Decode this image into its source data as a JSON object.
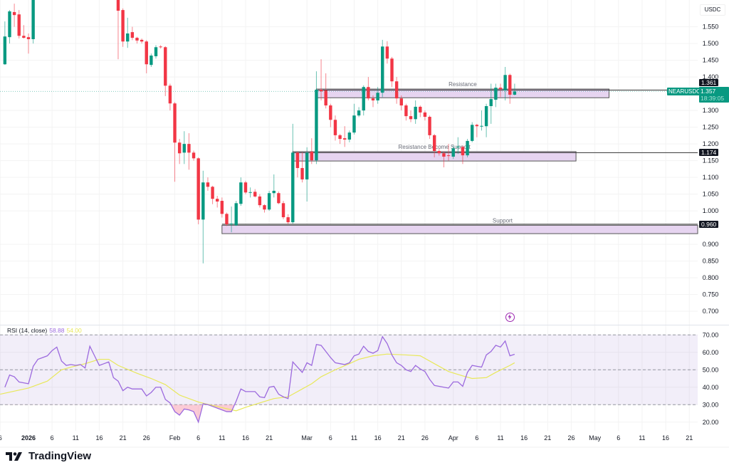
{
  "chart_data": {
    "type": "candlestick",
    "symbol": "NEARUSDC",
    "currency": "USDC",
    "colors": {
      "up": "#089981",
      "down": "#f23645",
      "rsi": "#9c6ade",
      "rsi_ma": "#e8e85a",
      "zone": "#e6d4f0"
    },
    "price_axis": {
      "range": [
        0.662,
        1.63
      ],
      "ticks": [
        "1.550",
        "1.500",
        "1.450",
        "1.400",
        "1.300",
        "1.250",
        "1.200",
        "1.150",
        "1.100",
        "1.050",
        "1.000",
        "0.900",
        "0.850",
        "0.800",
        "0.750",
        "0.700"
      ]
    },
    "time_axis": [
      {
        "date": "2025-12-26",
        "label": "6"
      },
      {
        "date": "2026-01-01",
        "label": "2026",
        "bold": true
      },
      {
        "date": "2026-01-06",
        "label": "6"
      },
      {
        "date": "2026-01-11",
        "label": "11"
      },
      {
        "date": "2026-01-16",
        "label": "16"
      },
      {
        "date": "2026-01-21",
        "label": "21"
      },
      {
        "date": "2026-01-26",
        "label": "26"
      },
      {
        "date": "2026-02-01",
        "label": "Feb"
      },
      {
        "date": "2026-02-06",
        "label": "6"
      },
      {
        "date": "2026-02-11",
        "label": "11"
      },
      {
        "date": "2026-02-16",
        "label": "16"
      },
      {
        "date": "2026-02-21",
        "label": "21"
      },
      {
        "date": "2026-03-01",
        "label": "Mar"
      },
      {
        "date": "2026-03-06",
        "label": "6"
      },
      {
        "date": "2026-03-11",
        "label": "11"
      },
      {
        "date": "2026-03-16",
        "label": "16"
      },
      {
        "date": "2026-03-21",
        "label": "21"
      },
      {
        "date": "2026-03-26",
        "label": "26"
      },
      {
        "date": "2026-04-01",
        "label": "Apr"
      },
      {
        "date": "2026-04-06",
        "label": "6"
      },
      {
        "date": "2026-04-11",
        "label": "11"
      },
      {
        "date": "2026-04-16",
        "label": "16"
      },
      {
        "date": "2026-04-21",
        "label": "21"
      },
      {
        "date": "2026-04-26",
        "label": "26"
      },
      {
        "date": "2026-05-01",
        "label": "May"
      },
      {
        "date": "2026-05-06",
        "label": "6"
      },
      {
        "date": "2026-05-11",
        "label": "11"
      },
      {
        "date": "2026-05-16",
        "label": "16"
      },
      {
        "date": "2026-05-21",
        "label": "21"
      }
    ],
    "candles_columns": [
      "date",
      "open",
      "high",
      "low",
      "close",
      "rsi"
    ],
    "candles": [
      [
        "2025-12-27",
        1.438,
        1.566,
        1.436,
        1.521,
        40
      ],
      [
        "2025-12-28",
        1.519,
        1.6,
        1.5,
        1.596,
        47
      ],
      [
        "2025-12-29",
        1.594,
        1.619,
        1.55,
        1.585,
        46
      ],
      [
        "2025-12-30",
        1.587,
        1.6,
        1.515,
        1.523,
        43
      ],
      [
        "2025-12-31",
        1.523,
        1.555,
        1.515,
        1.517,
        42.5
      ],
      [
        "2026-01-01",
        1.519,
        1.53,
        1.47,
        1.513,
        42
      ],
      [
        "2026-01-02",
        1.513,
        1.65,
        1.5,
        1.64,
        52
      ],
      [
        "2026-01-03",
        null,
        null,
        null,
        null,
        56
      ],
      [
        "2026-01-04",
        null,
        null,
        null,
        null,
        57
      ],
      [
        "2026-01-05",
        null,
        null,
        null,
        null,
        58
      ],
      [
        "2026-01-06",
        null,
        null,
        null,
        null,
        61
      ],
      [
        "2026-01-07",
        null,
        null,
        null,
        null,
        63
      ],
      [
        "2026-01-08",
        null,
        null,
        null,
        null,
        55
      ],
      [
        "2026-01-09",
        null,
        null,
        null,
        null,
        52.5
      ],
      [
        "2026-01-10",
        null,
        null,
        null,
        null,
        53
      ],
      [
        "2026-01-11",
        null,
        null,
        null,
        null,
        52.5
      ],
      [
        "2026-01-12",
        null,
        null,
        null,
        null,
        53
      ],
      [
        "2026-01-13",
        null,
        null,
        null,
        null,
        51
      ],
      [
        "2026-01-14",
        null,
        null,
        null,
        null,
        63.5
      ],
      [
        "2026-01-15",
        null,
        null,
        null,
        null,
        58
      ],
      [
        "2026-01-16",
        null,
        null,
        null,
        null,
        52.5
      ],
      [
        "2026-01-17",
        null,
        null,
        null,
        null,
        53.5
      ],
      [
        "2026-01-18",
        null,
        null,
        null,
        null,
        54.5
      ],
      [
        "2026-01-19",
        null,
        null,
        null,
        null,
        45.5
      ],
      [
        "2026-01-20",
        1.64,
        1.65,
        1.453,
        1.598,
        43.5
      ],
      [
        "2026-01-21",
        1.6,
        1.605,
        1.49,
        1.506,
        38
      ],
      [
        "2026-01-22",
        1.506,
        1.577,
        1.487,
        1.53,
        40
      ],
      [
        "2026-01-23",
        1.534,
        1.55,
        1.51,
        1.517,
        39
      ],
      [
        "2026-01-24",
        1.517,
        1.52,
        1.5,
        1.509,
        39
      ],
      [
        "2026-01-25",
        1.511,
        1.515,
        1.5,
        1.506,
        39
      ],
      [
        "2026-01-26",
        1.506,
        1.51,
        1.411,
        1.438,
        35
      ],
      [
        "2026-01-27",
        1.436,
        1.47,
        1.43,
        1.464,
        37
      ],
      [
        "2026-01-28",
        1.462,
        1.495,
        1.455,
        1.489,
        40
      ],
      [
        "2026-01-29",
        1.491,
        1.495,
        1.485,
        1.49,
        40
      ],
      [
        "2026-01-30",
        1.489,
        1.492,
        1.343,
        1.374,
        33
      ],
      [
        "2026-01-31",
        1.374,
        1.38,
        1.3,
        1.321,
        31
      ],
      [
        "2026-02-01",
        1.321,
        1.325,
        1.087,
        1.204,
        26
      ],
      [
        "2026-02-02",
        1.204,
        1.215,
        1.14,
        1.172,
        24
      ],
      [
        "2026-02-03",
        1.174,
        1.238,
        1.14,
        1.2,
        27.5
      ],
      [
        "2026-02-04",
        1.2,
        1.232,
        1.123,
        1.174,
        27
      ],
      [
        "2026-02-05",
        1.174,
        1.18,
        1.15,
        1.157,
        26
      ],
      [
        "2026-02-06",
        1.157,
        1.16,
        0.96,
        0.974,
        20
      ],
      [
        "2026-02-07",
        0.974,
        1.12,
        0.843,
        1.085,
        30.5
      ],
      [
        "2026-02-08",
        1.085,
        1.1,
        1.06,
        1.072,
        30
      ],
      [
        "2026-02-09",
        1.072,
        1.075,
        1.02,
        1.036,
        29
      ],
      [
        "2026-02-10",
        1.036,
        1.045,
        1.01,
        1.028,
        28
      ],
      [
        "2026-02-11",
        1.03,
        1.04,
        0.98,
        0.991,
        27
      ],
      [
        "2026-02-12",
        0.991,
        0.995,
        0.955,
        0.96,
        26
      ],
      [
        "2026-02-13",
        0.96,
        1.013,
        0.936,
        0.962,
        26
      ],
      [
        "2026-02-14",
        0.957,
        1.03,
        0.955,
        1.023,
        32
      ],
      [
        "2026-02-15",
        1.021,
        1.1,
        1.015,
        1.085,
        39
      ],
      [
        "2026-02-16",
        1.085,
        1.09,
        1.05,
        1.055,
        37.5
      ],
      [
        "2026-02-17",
        1.055,
        1.07,
        1.04,
        1.056,
        37.5
      ],
      [
        "2026-02-18",
        1.057,
        1.065,
        1.04,
        1.043,
        37.5
      ],
      [
        "2026-02-19",
        1.043,
        1.05,
        1.01,
        1.017,
        34.5
      ],
      [
        "2026-02-20",
        1.017,
        1.02,
        0.995,
        1.004,
        34
      ],
      [
        "2026-02-21",
        1.004,
        1.06,
        1.0,
        1.053,
        40
      ],
      [
        "2026-02-22",
        1.053,
        1.109,
        1.04,
        1.06,
        40.5
      ],
      [
        "2026-02-23",
        1.053,
        1.058,
        1.02,
        1.023,
        36
      ],
      [
        "2026-02-24",
        1.023,
        1.03,
        0.975,
        0.981,
        34.5
      ],
      [
        "2026-02-25",
        0.981,
        0.99,
        0.96,
        0.966,
        33.5
      ],
      [
        "2026-02-26",
        0.966,
        1.26,
        0.962,
        1.174,
        54.5
      ],
      [
        "2026-02-27",
        1.174,
        1.178,
        1.1,
        1.128,
        51.5
      ],
      [
        "2026-02-28",
        1.128,
        1.175,
        1.085,
        1.094,
        48.5
      ],
      [
        "2026-03-01",
        1.094,
        1.19,
        1.028,
        1.174,
        54
      ],
      [
        "2026-03-02",
        1.177,
        1.217,
        1.14,
        1.151,
        52.5
      ],
      [
        "2026-03-03",
        1.151,
        1.417,
        1.14,
        1.362,
        64.5
      ],
      [
        "2026-03-04",
        1.362,
        1.453,
        1.33,
        1.357,
        64
      ],
      [
        "2026-03-05",
        1.36,
        1.411,
        1.306,
        1.315,
        60.5
      ],
      [
        "2026-03-06",
        1.315,
        1.32,
        1.25,
        1.272,
        57
      ],
      [
        "2026-03-07",
        1.272,
        1.285,
        1.21,
        1.226,
        54
      ],
      [
        "2026-03-08",
        1.226,
        1.23,
        1.2,
        1.215,
        53.5
      ],
      [
        "2026-03-09",
        1.217,
        1.253,
        1.191,
        1.213,
        53
      ],
      [
        "2026-03-10",
        1.213,
        1.24,
        1.205,
        1.234,
        54
      ],
      [
        "2026-03-11",
        1.234,
        1.32,
        1.228,
        1.285,
        58
      ],
      [
        "2026-03-12",
        1.285,
        1.31,
        1.28,
        1.3,
        59
      ],
      [
        "2026-03-13",
        1.3,
        1.375,
        1.285,
        1.37,
        63.5
      ],
      [
        "2026-03-14",
        1.37,
        1.4,
        1.33,
        1.336,
        60.5
      ],
      [
        "2026-03-15",
        1.336,
        1.345,
        1.31,
        1.33,
        59.5
      ],
      [
        "2026-03-16",
        1.33,
        1.37,
        1.32,
        1.353,
        61
      ],
      [
        "2026-03-17",
        1.353,
        1.511,
        1.34,
        1.491,
        69
      ],
      [
        "2026-03-18",
        1.491,
        1.507,
        1.44,
        1.455,
        65
      ],
      [
        "2026-03-19",
        1.455,
        1.46,
        1.37,
        1.387,
        58.5
      ],
      [
        "2026-03-20",
        1.387,
        1.4,
        1.32,
        1.336,
        54
      ],
      [
        "2026-03-21",
        1.336,
        1.345,
        1.3,
        1.315,
        52.5
      ],
      [
        "2026-03-22",
        1.315,
        1.32,
        1.27,
        1.283,
        50
      ],
      [
        "2026-03-23",
        1.283,
        1.3,
        1.265,
        1.274,
        49
      ],
      [
        "2026-03-24",
        1.274,
        1.33,
        1.26,
        1.311,
        52.5
      ],
      [
        "2026-03-25",
        1.311,
        1.315,
        1.28,
        1.294,
        50.5
      ],
      [
        "2026-03-26",
        1.294,
        1.3,
        1.27,
        1.281,
        49
      ],
      [
        "2026-03-27",
        1.281,
        1.285,
        1.215,
        1.226,
        44.5
      ],
      [
        "2026-03-28",
        1.226,
        1.23,
        1.16,
        1.179,
        41
      ],
      [
        "2026-03-29",
        1.179,
        1.185,
        1.165,
        1.172,
        40.5
      ],
      [
        "2026-03-30",
        1.172,
        1.178,
        1.13,
        1.162,
        40
      ],
      [
        "2026-03-31",
        1.166,
        1.2,
        1.15,
        1.164,
        39.5
      ],
      [
        "2026-04-01",
        1.162,
        1.195,
        1.155,
        1.187,
        43
      ],
      [
        "2026-04-02",
        1.191,
        1.22,
        1.17,
        1.192,
        43
      ],
      [
        "2026-04-03",
        1.191,
        1.195,
        1.14,
        1.166,
        40.5
      ],
      [
        "2026-04-04",
        1.166,
        1.215,
        1.16,
        1.209,
        48.5
      ],
      [
        "2026-04-05",
        1.209,
        1.265,
        1.205,
        1.257,
        52.5
      ],
      [
        "2026-04-06",
        1.257,
        1.26,
        1.22,
        1.253,
        52
      ],
      [
        "2026-04-07",
        1.253,
        1.3,
        1.24,
        1.254,
        51.5
      ],
      [
        "2026-04-08",
        1.253,
        1.32,
        1.22,
        1.313,
        58.5
      ],
      [
        "2026-04-09",
        1.313,
        1.38,
        1.26,
        1.334,
        60.5
      ],
      [
        "2026-04-10",
        1.332,
        1.38,
        1.31,
        1.368,
        64
      ],
      [
        "2026-04-11",
        1.368,
        1.38,
        1.34,
        1.364,
        63
      ],
      [
        "2026-04-12",
        1.36,
        1.43,
        1.33,
        1.406,
        66.5
      ],
      [
        "2026-04-13",
        1.406,
        1.41,
        1.32,
        1.347,
        58
      ],
      [
        "2026-04-14",
        1.347,
        1.38,
        1.345,
        1.357,
        58.88
      ]
    ],
    "zones": [
      {
        "label": "Resistance",
        "line": 1.361,
        "line_label": "1.361",
        "top": 1.364,
        "bottom": 1.338,
        "from": "2026-03-03",
        "to": "2026-05-04"
      },
      {
        "label": "Resistance Become Support",
        "line": 1.174,
        "line_label": "1.174",
        "top": 1.177,
        "bottom": 1.149,
        "from": "2026-02-26",
        "to": "2026-04-27"
      },
      {
        "label": "Support",
        "line": 0.96,
        "line_label": "0.960",
        "top": 0.957,
        "bottom": 0.932,
        "from": "2026-02-11",
        "to": "2026-06-01"
      }
    ],
    "last_price": {
      "value": 1.357,
      "label": "1.357",
      "countdown": "18:39:05"
    },
    "rsi": {
      "title": "RSI (14, close)",
      "value_label": "58.88",
      "ma_label": "54.00",
      "range": [
        15,
        75
      ],
      "bands": [
        70,
        50,
        30
      ],
      "ticks": [
        "70.00",
        "60.00",
        "50.00",
        "40.00",
        "30.00",
        "20.00"
      ],
      "ma": [
        [
          "2025-12-26",
          36
        ],
        [
          "2026-01-01",
          39.5
        ],
        [
          "2026-01-05",
          43.5
        ],
        [
          "2026-01-08",
          50
        ],
        [
          "2026-01-10",
          51.5
        ],
        [
          "2026-01-13",
          53.5
        ],
        [
          "2026-01-16",
          56
        ],
        [
          "2026-01-18",
          56
        ],
        [
          "2026-01-20",
          52.5
        ],
        [
          "2026-01-24",
          48
        ],
        [
          "2026-01-27",
          45
        ],
        [
          "2026-01-30",
          41.5
        ],
        [
          "2026-02-02",
          35.5
        ],
        [
          "2026-02-06",
          31.5
        ],
        [
          "2026-02-09",
          29.5
        ],
        [
          "2026-02-14",
          26.5
        ],
        [
          "2026-02-16",
          28.5
        ],
        [
          "2026-02-19",
          31
        ],
        [
          "2026-02-22",
          33.5
        ],
        [
          "2026-02-25",
          34.5
        ],
        [
          "2026-02-28",
          39
        ],
        [
          "2026-03-02",
          42
        ],
        [
          "2026-03-04",
          46
        ],
        [
          "2026-03-07",
          50
        ],
        [
          "2026-03-10",
          53.5
        ],
        [
          "2026-03-12",
          56
        ],
        [
          "2026-03-15",
          58
        ],
        [
          "2026-03-18",
          59
        ],
        [
          "2026-03-22",
          58.5
        ],
        [
          "2026-03-25",
          58
        ],
        [
          "2026-03-28",
          53.5
        ],
        [
          "2026-03-31",
          49
        ],
        [
          "2026-04-03",
          46.5
        ],
        [
          "2026-04-05",
          45
        ],
        [
          "2026-04-08",
          45.5
        ],
        [
          "2026-04-10",
          48.5
        ],
        [
          "2026-04-13",
          52.5
        ],
        [
          "2026-04-14",
          54
        ]
      ]
    }
  },
  "brand": {
    "name": "TradingView"
  }
}
